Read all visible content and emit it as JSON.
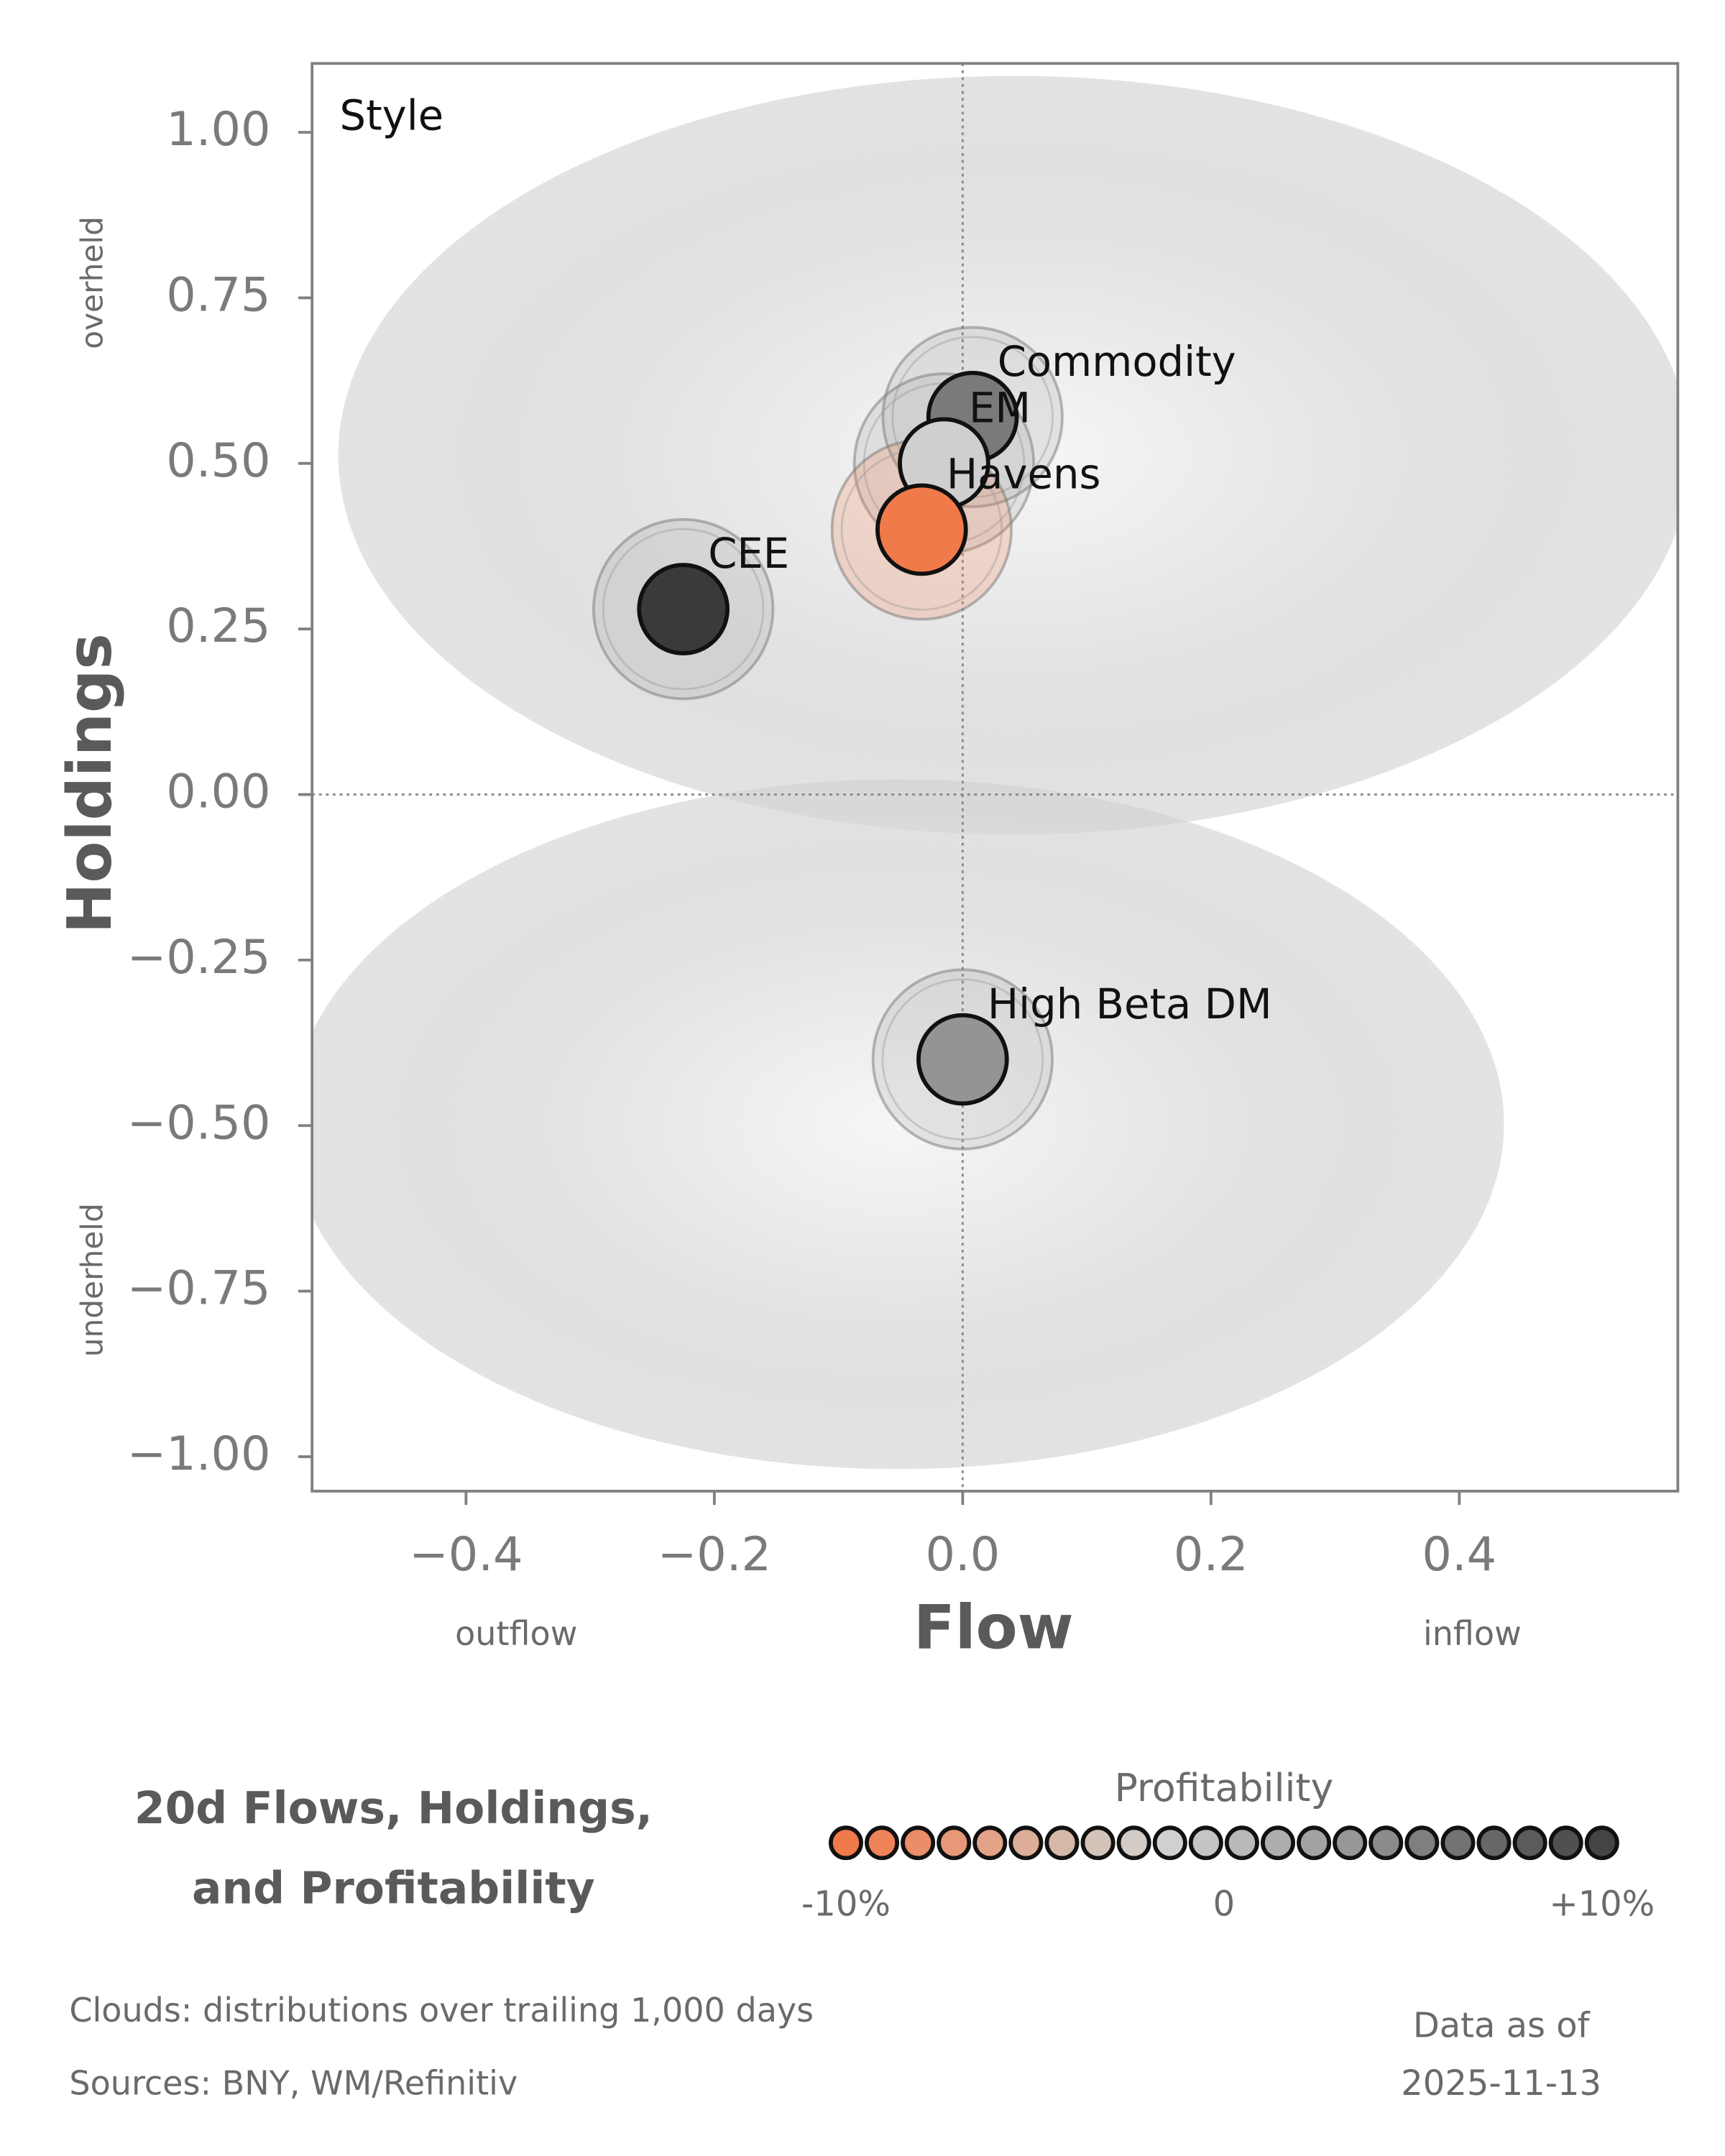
{
  "chart_data": {
    "type": "scatter",
    "annotation": "Style",
    "x_label": "Flow",
    "y_label": "Holdings",
    "x_low_note": "outflow",
    "x_high_note": "inflow",
    "y_high_note": "overheld",
    "y_low_note": "underheld",
    "xlim": [
      -0.524,
      0.576
    ],
    "ylim": [
      -1.052,
      1.104
    ],
    "xticks": [
      {
        "value": -0.4,
        "label": "−0.4"
      },
      {
        "value": -0.2,
        "label": "−0.2"
      },
      {
        "value": 0.0,
        "label": "0.0"
      },
      0.2,
      0.4
    ],
    "yticks": [
      {
        "value": -1.0,
        "label": "−1.00"
      },
      {
        "value": -0.75,
        "label": "−0.75"
      },
      {
        "value": -0.5,
        "label": "−0.50"
      },
      {
        "value": -0.25,
        "label": "−0.25"
      },
      {
        "value": 0.0,
        "label": "0.00"
      },
      {
        "value": 0.25,
        "label": "0.25"
      },
      {
        "value": 0.5,
        "label": "0.50"
      },
      {
        "value": 0.75,
        "label": "0.75"
      },
      {
        "value": 1.0,
        "label": "1.00"
      }
    ],
    "series": [
      {
        "name": "CEE",
        "color": "#3a3a3a",
        "x": [
          -0.225
        ],
        "y": [
          0.28
        ]
      },
      {
        "name": "Commodity",
        "color": "#7a7a7a",
        "x": [
          0.008
        ],
        "y": [
          0.57
        ]
      },
      {
        "name": "EM",
        "color": "#cfcfcf",
        "x": [
          -0.015
        ],
        "y": [
          0.5
        ]
      },
      {
        "name": "Havens",
        "color": "#f07a4a",
        "x": [
          -0.033
        ],
        "y": [
          0.4
        ]
      },
      {
        "name": "High Beta DM",
        "color": "#949494",
        "x": [
          0.0
        ],
        "y": [
          -0.4
        ]
      }
    ],
    "title_lines": [
      "20d Flows, Holdings,",
      "and Profitability"
    ],
    "legend": {
      "title": "Profitability",
      "range": [
        -10,
        10
      ],
      "ticks": [
        {
          "value": -10,
          "label": "-10%"
        },
        0,
        {
          "value": 10,
          "label": "+10%"
        }
      ],
      "colors": [
        "#f07a4a",
        "#ee835a",
        "#ea8d68",
        "#e69878",
        "#e2a388",
        "#dcae98",
        "#d6b8a8",
        "#d3c3b9",
        "#d2cbc6",
        "#d0d0d0",
        "#c5c5c5",
        "#b9b9b9",
        "#adadad",
        "#a2a2a2",
        "#979797",
        "#8b8b8b",
        "#7f7f7f",
        "#737373",
        "#676767",
        "#5b5b5b",
        "#505050",
        "#444444"
      ]
    },
    "footnotes": [
      "Clouds:  distributions over trailing 1,000 days",
      "Sources:  BNY, WM/Refinitiv"
    ],
    "as_of_lines": [
      "Data as of",
      "2025-11-13"
    ]
  }
}
